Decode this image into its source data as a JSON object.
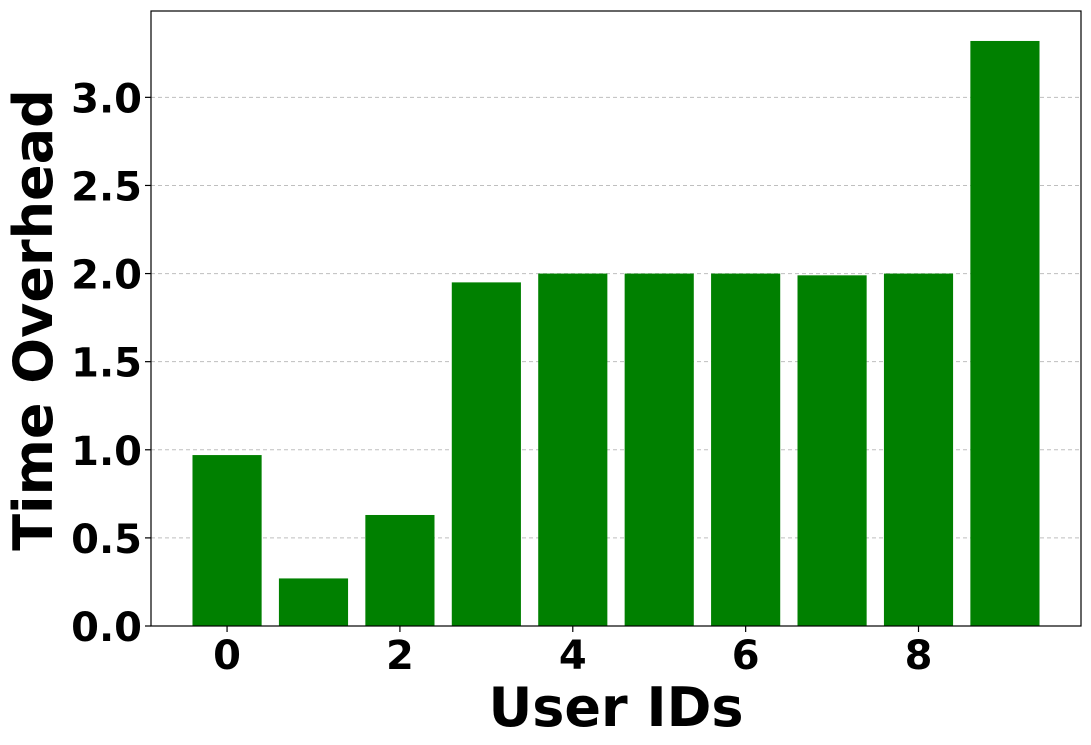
{
  "chart_data": {
    "type": "bar",
    "x": [
      0,
      1,
      2,
      3,
      4,
      5,
      6,
      7,
      8,
      9
    ],
    "values": [
      0.97,
      0.27,
      0.63,
      1.95,
      2.0,
      2.0,
      2.0,
      1.99,
      2.0,
      3.32
    ],
    "xlabel": "User IDs",
    "ylabel": "Time Overhead",
    "xticks": [
      0,
      2,
      4,
      6,
      8
    ],
    "xtick_labels": [
      "0",
      "2",
      "4",
      "6",
      "8"
    ],
    "yticks": [
      0.0,
      0.5,
      1.0,
      1.5,
      2.0,
      2.5,
      3.0
    ],
    "ytick_labels": [
      "0.0",
      "0.5",
      "1.0",
      "1.5",
      "2.0",
      "2.5",
      "3.0"
    ],
    "xlim": [
      -0.88,
      9.88
    ],
    "ylim": [
      0,
      3.49
    ],
    "grid": "y-dashed",
    "bar_color": "#008000",
    "grid_color": "#bfbfbf"
  }
}
